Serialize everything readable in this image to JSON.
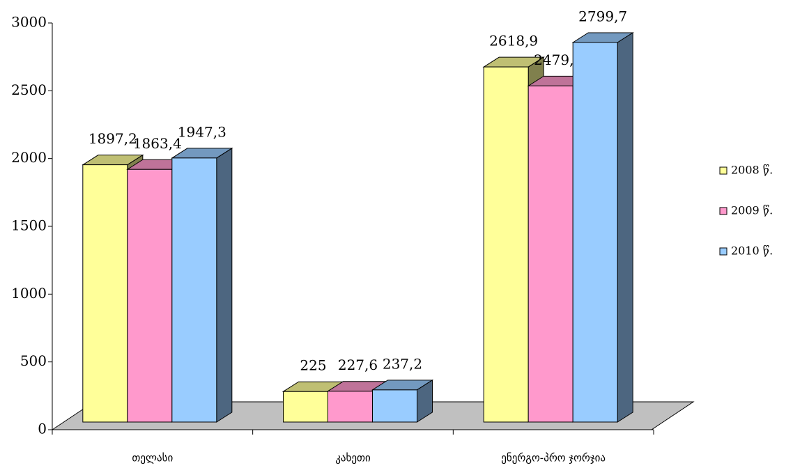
{
  "chart_data": {
    "type": "bar3d",
    "categories": [
      "თელასი",
      "კახეთი",
      "ენერგო-პრო ჯორჯია"
    ],
    "series": [
      {
        "name": "2008 წ.",
        "color": "#ffff99",
        "values": [
          1897.2,
          225,
          2618.9
        ],
        "value_labels": [
          "1897,2",
          "225",
          "2618,9"
        ]
      },
      {
        "name": "2009 წ.",
        "color": "#ff99cc",
        "values": [
          1863.4,
          227.6,
          2479.3
        ],
        "value_labels": [
          "1863,4",
          "227,6",
          "2479,3"
        ]
      },
      {
        "name": "2010 წ.",
        "color": "#99ccff",
        "values": [
          1947.3,
          237.2,
          2799.7
        ],
        "value_labels": [
          "1947,3",
          "237,2",
          "2799,7"
        ]
      }
    ],
    "ylim": [
      0,
      3000
    ],
    "yticks": [
      0,
      500,
      1000,
      1500,
      2000,
      2500,
      3000
    ],
    "legend": "right"
  }
}
